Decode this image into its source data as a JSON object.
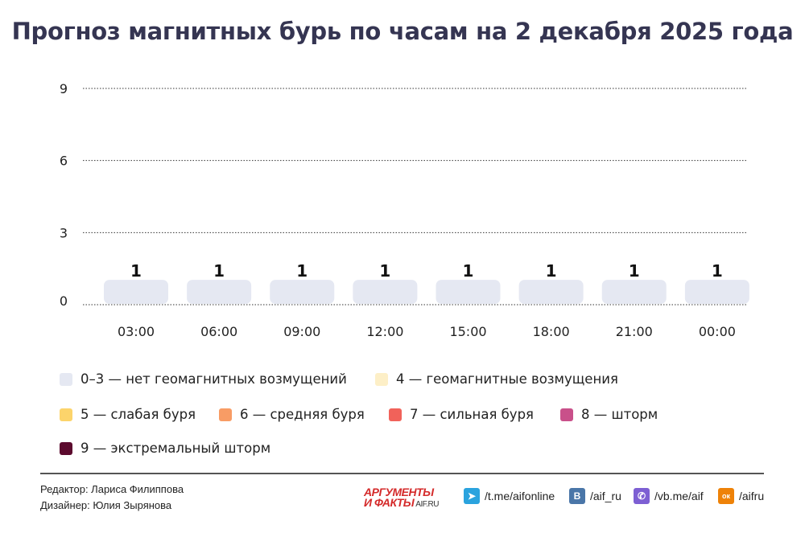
{
  "title": "Прогноз магнитных бурь по часам на 2 декабря 2025 года",
  "chart_data": {
    "type": "bar",
    "title": "Прогноз магнитных бурь по часам на 2 декабря 2025 года",
    "categories": [
      "03:00",
      "06:00",
      "09:00",
      "12:00",
      "15:00",
      "18:00",
      "21:00",
      "00:00"
    ],
    "values": [
      1,
      1,
      1,
      1,
      1,
      1,
      1,
      1
    ],
    "yticks": [
      "0",
      "3",
      "6",
      "9"
    ],
    "ylim": [
      0,
      9
    ],
    "grid": true,
    "bar_color": "#e5e8f2",
    "legend_position": "bottom"
  },
  "legend": [
    {
      "label": "0–3 — нет геомагнитных возмущений",
      "color": "#e5e8f2"
    },
    {
      "label": "4 — геомагнитные возмущения",
      "color": "#fdefc7"
    },
    {
      "label": "5 — слабая буря",
      "color": "#fcd46b"
    },
    {
      "label": "6 — средняя буря",
      "color": "#f89c65"
    },
    {
      "label": "7 — сильная буря",
      "color": "#f1625a"
    },
    {
      "label": "8 — шторм",
      "color": "#c9508a"
    },
    {
      "label": "9 — экстремальный шторм",
      "color": "#5c0a2e"
    }
  ],
  "footer": {
    "editor": "Редактор: Лариса Филиппова",
    "designer": "Дизайнер: Юлия Зырянова",
    "logo_line1": "АРГУМЕНТЫ",
    "logo_line2": "И ФАКТЫ",
    "logo_site": "AIF.RU",
    "social": [
      {
        "icon": "telegram-icon",
        "label": "/t.me/aifonline",
        "color": "#2aa3de",
        "glyph": "➤"
      },
      {
        "icon": "vk-icon",
        "label": "/aif_ru",
        "color": "#4a76a8",
        "glyph": "В"
      },
      {
        "icon": "viber-icon",
        "label": "/vb.me/aif",
        "color": "#7d5fd3",
        "glyph": "✆"
      },
      {
        "icon": "odnoklassniki-icon",
        "label": "/aifru",
        "color": "#ee8208",
        "glyph": "ок"
      }
    ]
  }
}
